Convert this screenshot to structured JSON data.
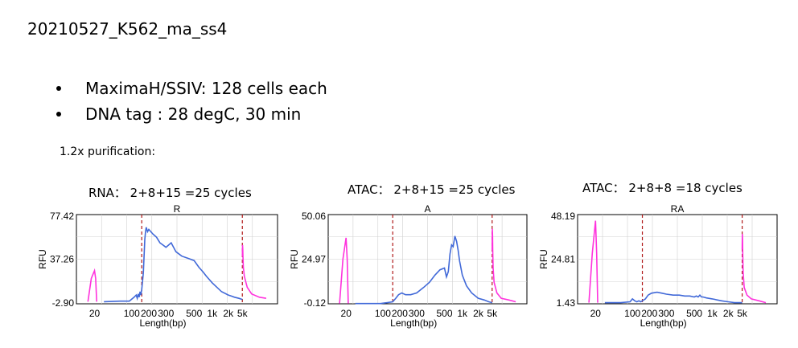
{
  "slide": {
    "title": "20210527_K562_ma_ss4",
    "bullets": [
      "MaximaH/SSIV: 128 cells each",
      "DNA tag : 28 degC, 30 min"
    ],
    "purification_label": "1.2x purification:"
  },
  "colors": {
    "sample_trace": "#4169d8",
    "marker_trace": "#ff33dd",
    "marker_line": "#b01818",
    "grid": "#d0d0d0"
  },
  "chart_data": [
    {
      "type": "line",
      "caption": "RNA： 2+8+15 =25 cycles",
      "title": "R",
      "xlabel": "Length(bp)",
      "ylabel": "RFU",
      "x_ticks": [
        "20",
        "100",
        "200",
        "300",
        "500",
        "1k",
        "2k",
        "5k"
      ],
      "y_ticks": [
        "77.42",
        "37.26",
        "-2.90"
      ],
      "ylim": [
        -2.9,
        77.42
      ],
      "grid": true,
      "series": [
        {
          "role": "sample",
          "x": [
            30,
            60,
            90,
            110,
            120,
            125,
            130,
            135,
            140,
            145,
            150,
            160,
            170,
            175,
            180,
            190,
            200,
            220,
            240,
            260,
            280,
            300,
            330,
            360,
            400,
            450,
            500,
            600,
            700,
            800,
            1000,
            1500,
            2000,
            2500,
            3000,
            4000,
            5000
          ],
          "y": [
            -1,
            -0.5,
            -0.5,
            3,
            5,
            2,
            6,
            3,
            8,
            5,
            10,
            25,
            55,
            62,
            66,
            62,
            64,
            60,
            57,
            52,
            50,
            48,
            52,
            44,
            40,
            38,
            36,
            30,
            26,
            22,
            16,
            8,
            5,
            4,
            3,
            2,
            1
          ]
        },
        {
          "role": "marker",
          "x": [
            18,
            19,
            20,
            21,
            22,
            5000,
            5020,
            5040,
            5060,
            5100,
            5200,
            5500,
            6000,
            7000,
            8000
          ],
          "y": [
            -1,
            20,
            27,
            20,
            -1,
            40,
            50,
            46,
            40,
            30,
            22,
            12,
            6,
            3,
            2
          ]
        }
      ]
    },
    {
      "type": "line",
      "caption": "ATAC： 2+8+15 =25 cycles",
      "title": "A",
      "xlabel": "Length(bp)",
      "ylabel": "RFU",
      "x_ticks": [
        "20",
        "100",
        "200",
        "300",
        "500",
        "1k",
        "2k",
        "5k"
      ],
      "y_ticks": [
        "50.06",
        "24.97",
        "-0.12"
      ],
      "ylim": [
        -0.12,
        50.06
      ],
      "grid": true,
      "series": [
        {
          "role": "sample",
          "x": [
            30,
            60,
            90,
            120,
            150,
            170,
            190,
            210,
            230,
            260,
            300,
            340,
            380,
            420,
            460,
            500,
            540,
            580,
            620,
            660,
            700,
            750,
            800,
            850,
            900,
            1000,
            1200,
            1500,
            2000,
            3000,
            4000,
            5000
          ],
          "y": [
            0,
            0,
            0,
            0.5,
            1,
            3,
            5,
            6,
            5,
            5,
            6,
            9,
            12,
            16,
            19,
            20,
            15,
            18,
            28,
            33,
            32,
            38,
            35,
            30,
            24,
            16,
            10,
            6,
            3,
            2,
            1,
            0.5
          ]
        },
        {
          "role": "marker",
          "x": [
            18,
            19,
            20,
            21,
            22,
            5000,
            5020,
            5040,
            5060,
            5100,
            5200,
            5500,
            6000,
            7000,
            8000
          ],
          "y": [
            0,
            25,
            37,
            25,
            0,
            30,
            42,
            38,
            30,
            20,
            12,
            6,
            3,
            2,
            1
          ]
        }
      ]
    },
    {
      "type": "line",
      "caption": "ATAC： 2+8+8 =18 cycles",
      "title": "RA",
      "xlabel": "Length(bp)",
      "ylabel": "RFU",
      "x_ticks": [
        "20",
        "100",
        "200",
        "300",
        "500",
        "1k",
        "2k",
        "5k"
      ],
      "y_ticks": [
        "48.19",
        "24.81",
        "1.43"
      ],
      "ylim": [
        1.43,
        48.19
      ],
      "grid": true,
      "series": [
        {
          "role": "sample",
          "x": [
            30,
            60,
            90,
            100,
            110,
            120,
            130,
            140,
            150,
            170,
            190,
            210,
            240,
            270,
            300,
            340,
            380,
            420,
            460,
            500,
            540,
            580,
            620,
            660,
            700,
            800,
            1000,
            1500,
            2000,
            3000,
            4000,
            5000
          ],
          "y": [
            2,
            2,
            2.5,
            4,
            3,
            2.5,
            3,
            2.5,
            3,
            4,
            6,
            7,
            7.5,
            7,
            6.5,
            6,
            6,
            5.5,
            5.5,
            5,
            5.5,
            5,
            6,
            5,
            5,
            4.5,
            4,
            3,
            2.5,
            2,
            2,
            2
          ]
        },
        {
          "role": "marker",
          "x": [
            18,
            19,
            20,
            21,
            22,
            5000,
            5020,
            5040,
            5060,
            5100,
            5200,
            5500,
            6000,
            7000,
            8000
          ],
          "y": [
            2,
            28,
            45,
            28,
            2,
            30,
            38,
            35,
            28,
            18,
            10,
            6,
            4,
            3,
            2
          ]
        }
      ]
    }
  ]
}
